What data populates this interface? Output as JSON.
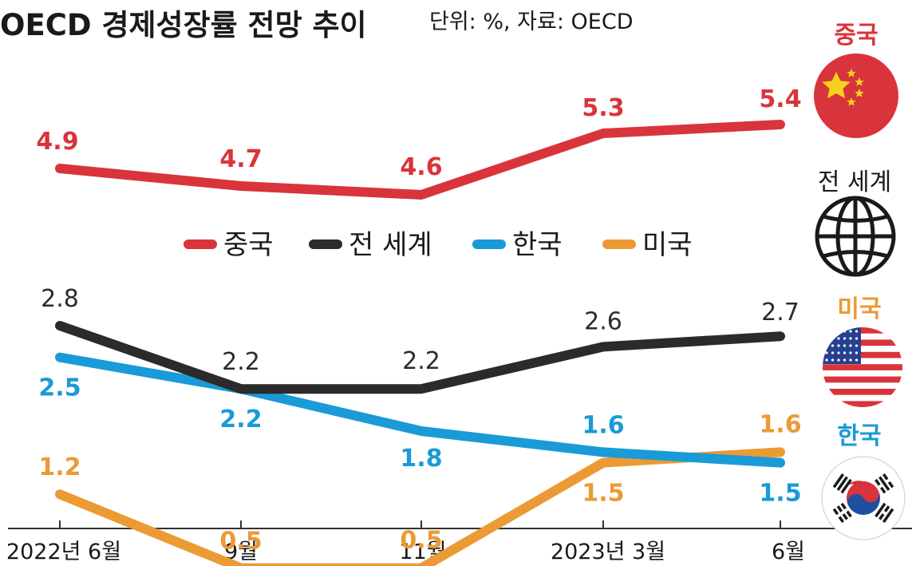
{
  "chart_data": {
    "type": "line",
    "title": "OECD 경제성장률 전망 추이",
    "subtitle": "단위: %, 자료: OECD",
    "categories": [
      "2022년 6월",
      "9월",
      "11월",
      "2023년 3월",
      "6월"
    ],
    "series": [
      {
        "name": "중국",
        "values": [
          4.9,
          4.7,
          4.6,
          5.3,
          5.4
        ],
        "color": "#d9343b"
      },
      {
        "name": "전 세계",
        "values": [
          2.8,
          2.2,
          2.2,
          2.6,
          2.7
        ],
        "color": "#2b2b2b"
      },
      {
        "name": "한국",
        "values": [
          2.5,
          2.2,
          1.8,
          1.6,
          1.5
        ],
        "color": "#1a9ad6"
      },
      {
        "name": "미국",
        "values": [
          1.2,
          0.5,
          0.5,
          1.5,
          1.6
        ],
        "color": "#eb9a34"
      }
    ],
    "legend_position": "center",
    "grid": false
  },
  "side_labels": {
    "china": "중국",
    "world": "전 세계",
    "usa": "미국",
    "korea": "한국"
  },
  "icons": {
    "china": "china-flag-icon",
    "world": "globe-icon",
    "usa": "us-flag-icon",
    "korea": "korea-flag-icon"
  }
}
